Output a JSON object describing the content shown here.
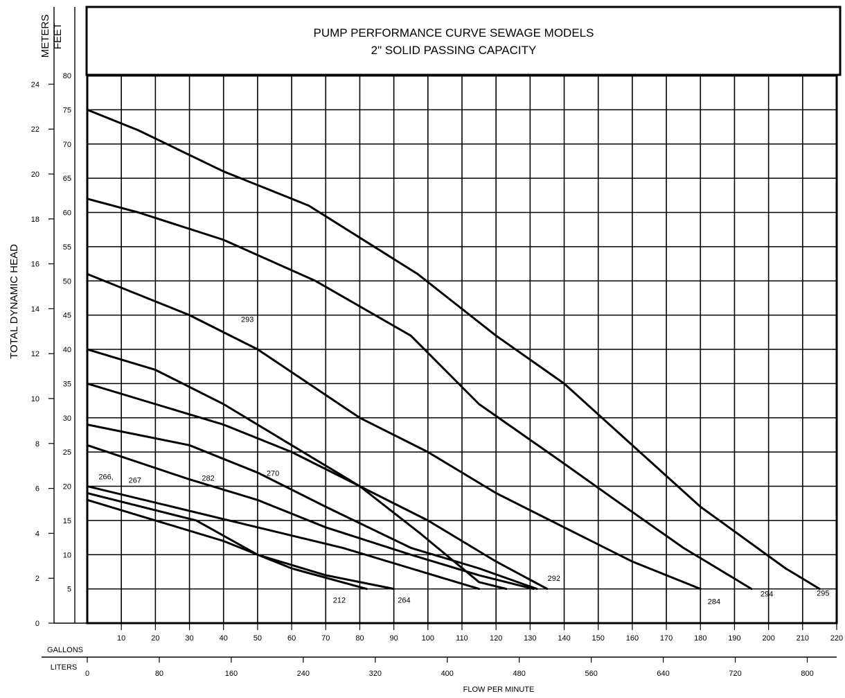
{
  "chart_data": {
    "type": "line",
    "title": "PUMP PERFORMANCE CURVE SEWAGE MODELS",
    "subtitle": "2\" SOLID PASSING CAPACITY",
    "ylabel": "TOTAL DYNAMIC HEAD",
    "xlabel": "FLOW PER MINUTE",
    "y_unit_labels": [
      "METERS",
      "FEET"
    ],
    "x_unit_labels": [
      "GALLONS",
      "LITERS"
    ],
    "grid": true,
    "xlim": [
      0,
      220
    ],
    "ylim": [
      0,
      80
    ],
    "feet_ticks": [
      "5",
      "10",
      "15",
      "20",
      "25",
      "30",
      "35",
      "40",
      "45",
      "50",
      "55",
      "60",
      "65",
      "70",
      "75",
      "80"
    ],
    "meters_ticks": [
      "0",
      "2",
      "4",
      "6",
      "8",
      "10",
      "12",
      "14",
      "16",
      "18",
      "20",
      "22",
      "24"
    ],
    "gallons_ticks": [
      "10",
      "20",
      "30",
      "40",
      "50",
      "60",
      "70",
      "80",
      "90",
      "100",
      "110",
      "120",
      "130",
      "140",
      "150",
      "160",
      "170",
      "180",
      "190",
      "200",
      "210",
      "220"
    ],
    "liters_ticks": [
      "0",
      "80",
      "160",
      "240",
      "320",
      "400",
      "480",
      "560",
      "640",
      "720",
      "800"
    ],
    "series": [
      {
        "name": "295",
        "x": [
          0,
          15,
          40,
          65,
          97,
          120,
          140,
          160,
          180,
          205,
          215
        ],
        "y": [
          75,
          72,
          66,
          61,
          51,
          42,
          35,
          26,
          17,
          8,
          5
        ]
      },
      {
        "name": "294",
        "x": [
          0,
          15,
          40,
          67,
          95,
          115,
          138,
          155,
          175,
          195
        ],
        "y": [
          62,
          60,
          56,
          50,
          42,
          32,
          24,
          18,
          11,
          5
        ]
      },
      {
        "name": "284",
        "x": [
          0,
          15,
          30,
          50,
          65,
          80,
          100,
          120,
          140,
          160,
          180
        ],
        "y": [
          51,
          48,
          45,
          40,
          35,
          30,
          25,
          19,
          14,
          9,
          5
        ]
      },
      {
        "name": "293",
        "x": [
          0,
          20,
          40,
          60,
          80,
          98,
          115,
          123
        ],
        "y": [
          40,
          37,
          32,
          26,
          20,
          13,
          6,
          5
        ]
      },
      {
        "name": "292",
        "x": [
          0,
          20,
          40,
          60,
          80,
          100,
          120,
          135
        ],
        "y": [
          35,
          32,
          29,
          25,
          20,
          15,
          9,
          5
        ]
      },
      {
        "name": "270",
        "x": [
          0,
          30,
          50,
          70,
          95,
          115,
          132
        ],
        "y": [
          29,
          26,
          22,
          17,
          11,
          8,
          5
        ]
      },
      {
        "name": "282",
        "x": [
          0,
          30,
          50,
          70,
          95,
          115,
          131
        ],
        "y": [
          26,
          21,
          18,
          14,
          10,
          7,
          5
        ]
      },
      {
        "name": "266, 267",
        "x": [
          0,
          25,
          50,
          75,
          95,
          115
        ],
        "y": [
          20,
          17,
          14,
          11,
          8,
          5
        ]
      },
      {
        "name": "264",
        "x": [
          0,
          32,
          50,
          70,
          90
        ],
        "y": [
          19,
          15,
          10,
          7,
          5
        ]
      },
      {
        "name": "212",
        "x": [
          0,
          20,
          40,
          60,
          82
        ],
        "y": [
          18,
          15,
          12,
          8,
          5
        ]
      }
    ],
    "curve_labels": [
      {
        "text": "293",
        "x": 47,
        "y": 44
      },
      {
        "text": "266,",
        "x": 5.5,
        "y": 21
      },
      {
        "text": "267",
        "x": 14,
        "y": 20.5
      },
      {
        "text": "282",
        "x": 35.5,
        "y": 20.8
      },
      {
        "text": "270",
        "x": 54.5,
        "y": 21.5
      },
      {
        "text": "292",
        "x": 137,
        "y": 6.2
      },
      {
        "text": "212",
        "x": 74,
        "y": 3
      },
      {
        "text": "264",
        "x": 93,
        "y": 3
      },
      {
        "text": "284",
        "x": 184,
        "y": 2.8
      },
      {
        "text": "294",
        "x": 199.5,
        "y": 3.9
      },
      {
        "text": "295",
        "x": 216,
        "y": 4
      }
    ]
  }
}
